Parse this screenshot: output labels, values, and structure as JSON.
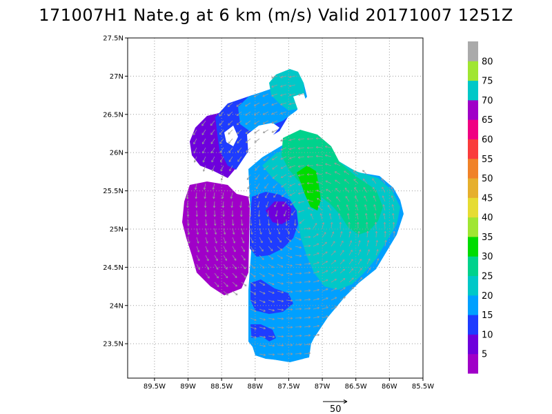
{
  "title": "171007H1 Nate.g at 6 km (m/s) Valid 20171007  1251Z",
  "map": {
    "lon_range": [
      -89.9,
      -85.5
    ],
    "lat_range": [
      23.05,
      27.5
    ],
    "lon_ticks": [
      {
        "v": -89.5,
        "label": "89.5W"
      },
      {
        "v": -89.0,
        "label": "89W"
      },
      {
        "v": -88.5,
        "label": "88.5W"
      },
      {
        "v": -88.0,
        "label": "88W"
      },
      {
        "v": -87.5,
        "label": "87.5W"
      },
      {
        "v": -87.0,
        "label": "87W"
      },
      {
        "v": -86.5,
        "label": "86.5W"
      },
      {
        "v": -86.0,
        "label": "86W"
      },
      {
        "v": -85.5,
        "label": "85.5W"
      }
    ],
    "lat_ticks": [
      {
        "v": 23.5,
        "label": "23.5N"
      },
      {
        "v": 24.0,
        "label": "24N"
      },
      {
        "v": 24.5,
        "label": "24.5N"
      },
      {
        "v": 25.0,
        "label": "25N"
      },
      {
        "v": 25.5,
        "label": "25.5N"
      },
      {
        "v": 26.0,
        "label": "26N"
      },
      {
        "v": 26.5,
        "label": "26.5N"
      },
      {
        "v": 27.0,
        "label": "27N"
      },
      {
        "v": 27.5,
        "label": "27.5N"
      }
    ],
    "grid": "dotted"
  },
  "colorbar": {
    "labels": [
      "5",
      "10",
      "15",
      "20",
      "25",
      "30",
      "35",
      "40",
      "45",
      "50",
      "55",
      "60",
      "65",
      "70",
      "75",
      "80"
    ],
    "colors": [
      "#a000c8",
      "#6e00dc",
      "#1e3cff",
      "#00a0ff",
      "#00c8c8",
      "#00d28c",
      "#00dc00",
      "#a0e632",
      "#e6dc32",
      "#e6af2d",
      "#f08228",
      "#fa3c3c",
      "#f00082",
      "#a000c8",
      "#00c8c8",
      "#a0e632",
      "#aaaaaa"
    ]
  },
  "reference_vector": {
    "value": "50"
  },
  "wind_field": {
    "center_lon": -87.25,
    "center_lat": 25.1,
    "colors": {
      "c5": "#a000c8",
      "c10": "#6e00dc",
      "c15": "#1e3cff",
      "c20": "#00a0ff",
      "c25": "#00c8c8",
      "c30": "#00d28c",
      "c35": "#00dc00"
    }
  }
}
